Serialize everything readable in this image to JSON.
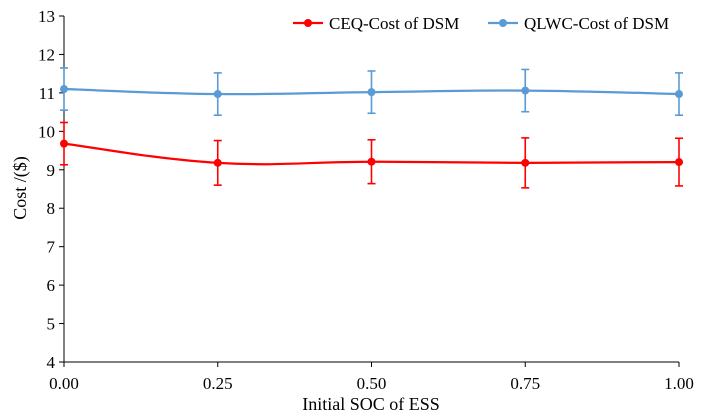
{
  "chart_data": {
    "type": "line",
    "title": "",
    "xlabel": "Initial SOC of ESS",
    "ylabel": "Cost /($)",
    "x": [
      0,
      0.25,
      0.5,
      0.75,
      1
    ],
    "x_tick_labels": [
      "0.00",
      "0.25",
      "0.50",
      "0.75",
      "1.00"
    ],
    "xlim": [
      0,
      1
    ],
    "ylim": [
      4,
      13
    ],
    "y_ticks": [
      4,
      5,
      6,
      7,
      8,
      9,
      10,
      11,
      12,
      13
    ],
    "grid": false,
    "legend_position": "top-right",
    "series": [
      {
        "name": "CEQ-Cost of DSM",
        "color": "#ff0000",
        "values": [
          9.68,
          9.18,
          9.21,
          9.18,
          9.2
        ],
        "error": [
          0.55,
          0.58,
          0.57,
          0.65,
          0.62
        ]
      },
      {
        "name": "QLWC-Cost of DSM",
        "color": "#5b9bd5",
        "values": [
          11.1,
          10.97,
          11.02,
          11.06,
          10.97
        ],
        "error": [
          0.55,
          0.55,
          0.55,
          0.55,
          0.55
        ]
      }
    ]
  }
}
